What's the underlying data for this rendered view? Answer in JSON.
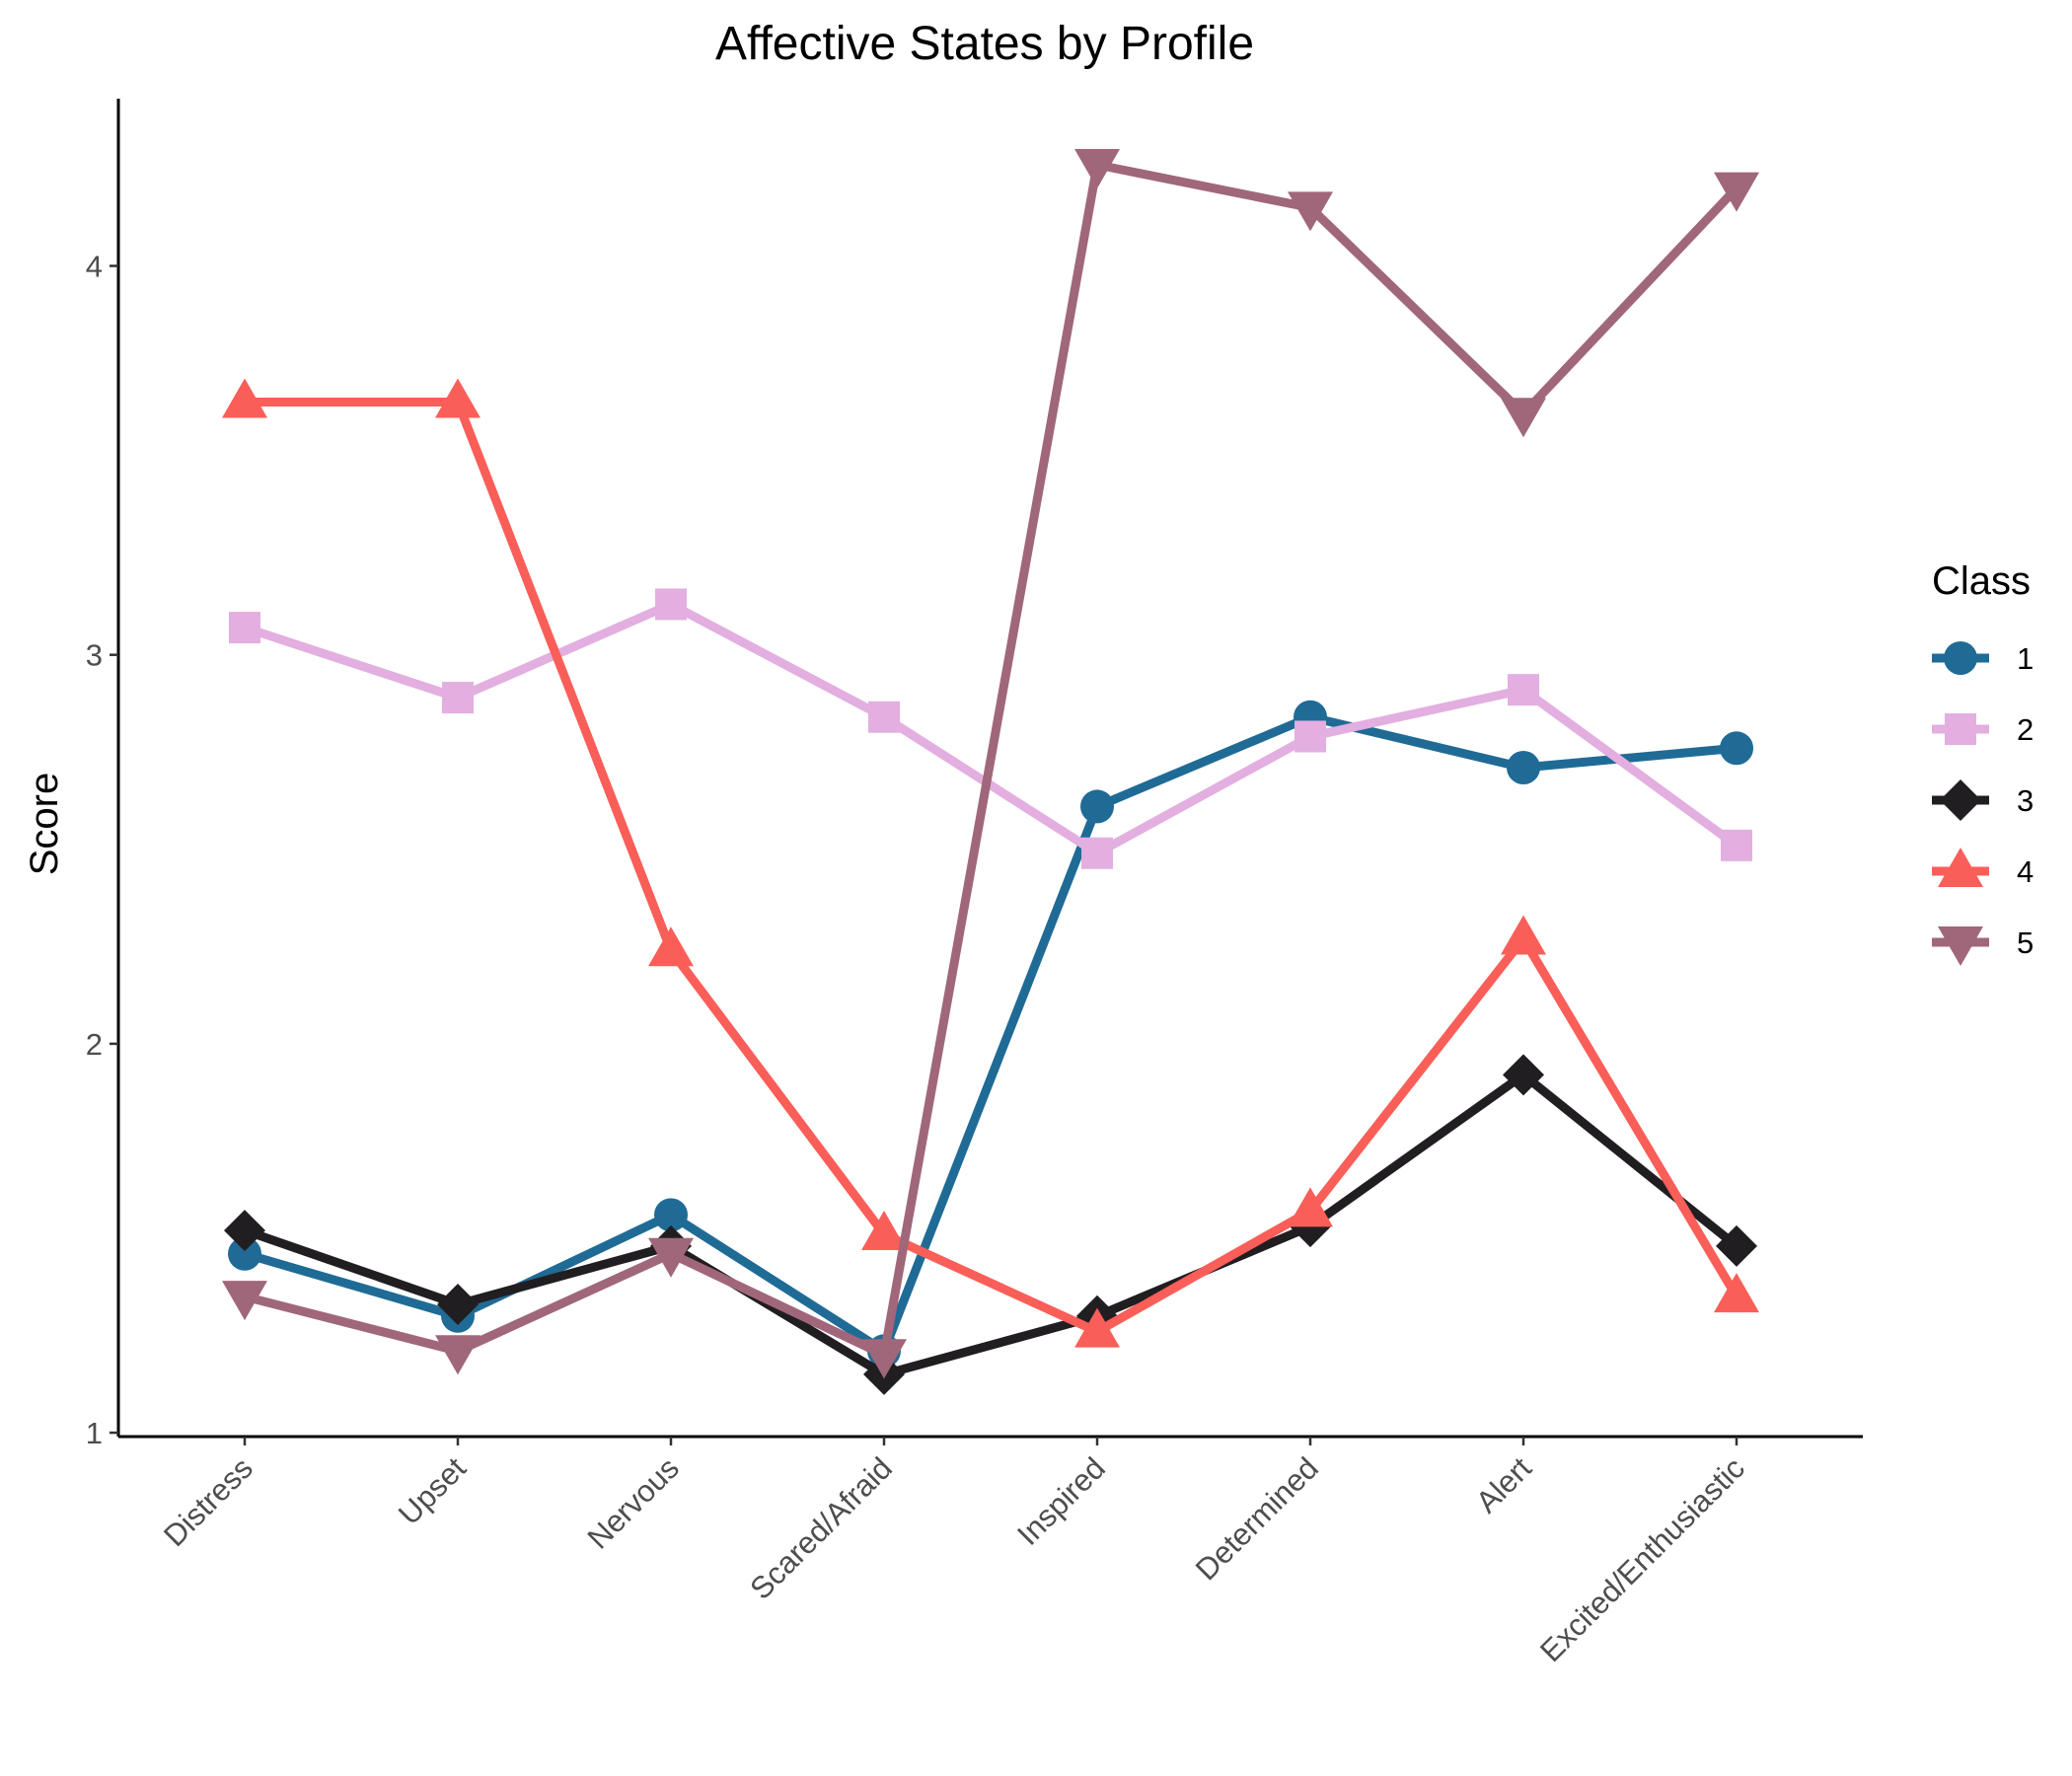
{
  "chart_data": {
    "type": "line",
    "title": "Affective States by Profile",
    "xlabel": "",
    "ylabel": "Score",
    "categories": [
      "Distress",
      "Upset",
      "Nervous",
      "Scared/Afraid",
      "Inspired",
      "Determined",
      "Alert",
      "Excited/Enthusiastic"
    ],
    "ylim": [
      0.99,
      4.43
    ],
    "yticks": [
      1,
      2,
      3,
      4
    ],
    "grid": false,
    "legend": {
      "title": "Class",
      "position": "right"
    },
    "series": [
      {
        "name": "1",
        "color": "#1f6b96",
        "marker": "circle",
        "values": [
          1.46,
          1.3,
          1.56,
          1.21,
          2.61,
          2.84,
          2.71,
          2.76
        ]
      },
      {
        "name": "2",
        "color": "#e3aee0",
        "marker": "square",
        "values": [
          3.07,
          2.89,
          3.13,
          2.84,
          2.49,
          2.79,
          2.91,
          2.51
        ]
      },
      {
        "name": "3",
        "color": "#211e22",
        "marker": "diamond",
        "values": [
          1.52,
          1.33,
          1.48,
          1.15,
          1.3,
          1.53,
          1.92,
          1.48
        ]
      },
      {
        "name": "4",
        "color": "#fa5e58",
        "marker": "triangle-up",
        "values": [
          3.65,
          3.65,
          2.24,
          1.51,
          1.26,
          1.57,
          2.27,
          1.35
        ]
      },
      {
        "name": "5",
        "color": "#a0677a",
        "marker": "triangle-down",
        "values": [
          1.35,
          1.21,
          1.46,
          1.2,
          4.26,
          4.15,
          3.62,
          4.2
        ]
      }
    ]
  }
}
